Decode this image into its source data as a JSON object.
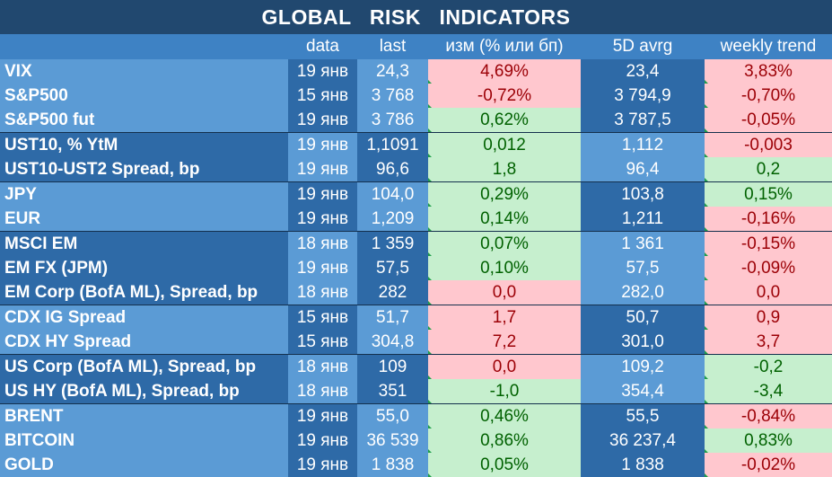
{
  "title": "GLOBAL   RISK   INDICATORS",
  "headers": [
    "",
    "data",
    "last",
    "изм (% или бп)",
    "5D avrg",
    "weekly trend"
  ],
  "colors": {
    "positive_bg": "#c6efce",
    "positive_text": "#006100",
    "negative_bg": "#ffc7ce",
    "negative_text": "#9c0006",
    "header_bg": "#21486f"
  },
  "rows": [
    {
      "name": "VIX",
      "date": "19 янв",
      "last": "24,3",
      "chg": "4,69%",
      "chg_sign": "neg",
      "avg": "23,4",
      "trend": "3,83%",
      "trend_sign": "neg",
      "group_start": true
    },
    {
      "name": "S&P500",
      "date": "15 янв",
      "last": "3 768",
      "chg": "-0,72%",
      "chg_sign": "neg",
      "avg": "3 794,9",
      "trend": "-0,70%",
      "trend_sign": "neg"
    },
    {
      "name": "S&P500 fut",
      "date": "19 янв",
      "last": "3 786",
      "chg": "0,62%",
      "chg_sign": "pos",
      "avg": "3 787,5",
      "trend": "-0,05%",
      "trend_sign": "neg"
    },
    {
      "name": "UST10, % YtM",
      "date": "19 янв",
      "last": "1,1091",
      "chg": "0,012",
      "chg_sign": "pos",
      "avg": "1,112",
      "trend": "-0,003",
      "trend_sign": "neg",
      "group_start": true
    },
    {
      "name": "UST10-UST2 Spread, bp",
      "date": "19 янв",
      "last": "96,6",
      "chg": "1,8",
      "chg_sign": "pos",
      "avg": "96,4",
      "trend": "0,2",
      "trend_sign": "pos"
    },
    {
      "name": "JPY",
      "date": "19 янв",
      "last": "104,0",
      "chg": "0,29%",
      "chg_sign": "pos",
      "avg": "103,8",
      "trend": "0,15%",
      "trend_sign": "pos",
      "group_start": true
    },
    {
      "name": "EUR",
      "date": "19 янв",
      "last": "1,209",
      "chg": "0,14%",
      "chg_sign": "pos",
      "avg": "1,211",
      "trend": "-0,16%",
      "trend_sign": "neg"
    },
    {
      "name": "MSCI EM",
      "date": "18 янв",
      "last": "1 359",
      "chg": "0,07%",
      "chg_sign": "pos",
      "avg": "1 361",
      "trend": "-0,15%",
      "trend_sign": "neg",
      "group_start": true
    },
    {
      "name": "EM FX (JPM)",
      "date": "19 янв",
      "last": "57,5",
      "chg": "0,10%",
      "chg_sign": "pos",
      "avg": "57,5",
      "trend": "-0,09%",
      "trend_sign": "neg"
    },
    {
      "name": "EM Corp (BofA ML), Spread, bp",
      "date": "18 янв",
      "last": "282",
      "chg": "0,0",
      "chg_sign": "neg",
      "avg": "282,0",
      "trend": "0,0",
      "trend_sign": "neg"
    },
    {
      "name": "CDX IG Spread",
      "date": "15 янв",
      "last": "51,7",
      "chg": "1,7",
      "chg_sign": "neg",
      "avg": "50,7",
      "trend": "0,9",
      "trend_sign": "neg",
      "group_start": true
    },
    {
      "name": "CDX HY Spread",
      "date": "15 янв",
      "last": "304,8",
      "chg": "7,2",
      "chg_sign": "neg",
      "avg": "301,0",
      "trend": "3,7",
      "trend_sign": "neg"
    },
    {
      "name": "US Corp (BofA ML), Spread, bp",
      "date": "18 янв",
      "last": "109",
      "chg": "0,0",
      "chg_sign": "neg",
      "avg": "109,2",
      "trend": "-0,2",
      "trend_sign": "pos",
      "group_start": true
    },
    {
      "name": "US HY (BofA ML), Spread, bp",
      "date": "18 янв",
      "last": "351",
      "chg": "-1,0",
      "chg_sign": "pos",
      "avg": "354,4",
      "trend": "-3,4",
      "trend_sign": "pos"
    },
    {
      "name": "BRENT",
      "date": "19 янв",
      "last": "55,0",
      "chg": "0,46%",
      "chg_sign": "pos",
      "avg": "55,5",
      "trend": "-0,84%",
      "trend_sign": "neg",
      "group_start": true
    },
    {
      "name": "BITCOIN",
      "date": "19 янв",
      "last": "36 539",
      "chg": "0,86%",
      "chg_sign": "pos",
      "avg": "36 237,4",
      "trend": "0,83%",
      "trend_sign": "pos"
    },
    {
      "name": "GOLD",
      "date": "19 янв",
      "last": "1 838",
      "chg": "0,05%",
      "chg_sign": "pos",
      "avg": "1 838",
      "trend": "-0,02%",
      "trend_sign": "neg"
    }
  ]
}
